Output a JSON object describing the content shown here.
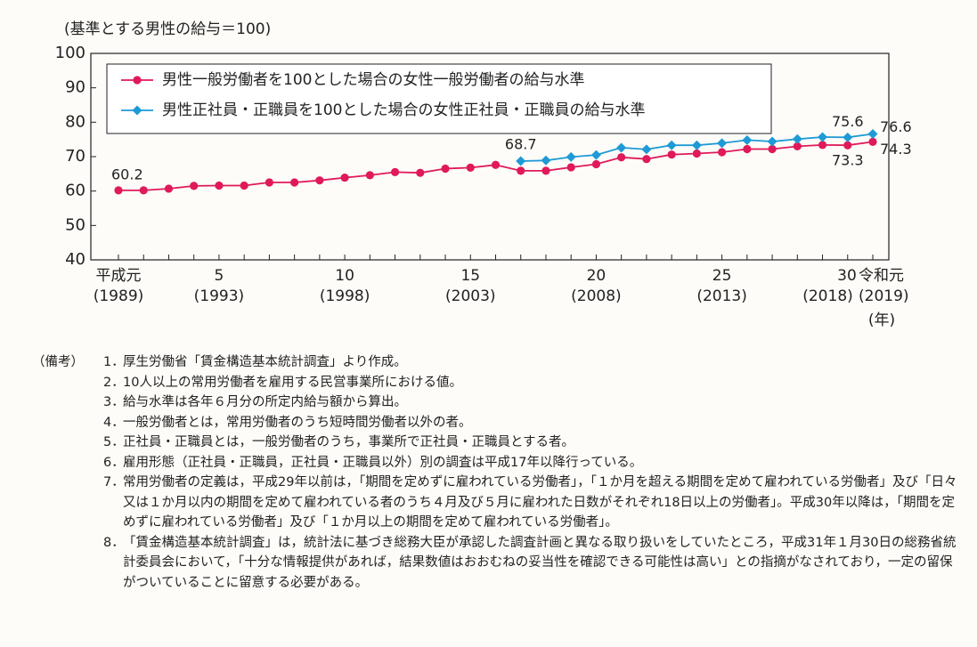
{
  "chart_data": {
    "type": "line",
    "y_axis_title": "(基準とする男性の給与＝100)",
    "categories": [
      "平成元",
      null,
      null,
      null,
      "5",
      null,
      null,
      null,
      null,
      "10",
      null,
      null,
      null,
      null,
      "15",
      null,
      null,
      null,
      null,
      "20",
      null,
      null,
      null,
      null,
      "25",
      null,
      null,
      null,
      null,
      "30",
      "令和元"
    ],
    "category_years": [
      "(1989)",
      null,
      null,
      null,
      "(1993)",
      null,
      null,
      null,
      null,
      "(1998)",
      null,
      null,
      null,
      null,
      "(2003)",
      null,
      null,
      null,
      null,
      "(2008)",
      null,
      null,
      null,
      null,
      "(2013)",
      null,
      null,
      null,
      null,
      "(2018)",
      "(2019)"
    ],
    "x_unit": "(年)",
    "series": [
      {
        "name": "男性一般労働者を100とした場合の女性一般労働者の給与水準",
        "color": "#e0195a",
        "marker": "circle",
        "values": [
          60.2,
          60.2,
          60.7,
          61.5,
          61.6,
          61.6,
          62.5,
          62.5,
          63.1,
          63.9,
          64.6,
          65.5,
          65.3,
          66.5,
          66.8,
          67.6,
          65.9,
          65.9,
          66.9,
          67.8,
          69.8,
          69.3,
          70.6,
          70.9,
          71.3,
          72.2,
          72.2,
          73.0,
          73.4,
          73.3,
          74.3
        ]
      },
      {
        "name": "男性正社員・正職員を100とした場合の女性正社員・正職員の給与水準",
        "color": "#1e9ad6",
        "marker": "diamond",
        "values": [
          null,
          null,
          null,
          null,
          null,
          null,
          null,
          null,
          null,
          null,
          null,
          null,
          null,
          null,
          null,
          null,
          68.7,
          68.9,
          69.9,
          70.5,
          72.6,
          72.1,
          73.3,
          73.3,
          73.9,
          74.8,
          74.4,
          75.1,
          75.7,
          75.6,
          76.6
        ]
      }
    ],
    "ylim": [
      40,
      100
    ],
    "yticks": [
      40,
      50,
      60,
      70,
      80,
      90,
      100
    ],
    "grid": false,
    "legend": "top-left"
  },
  "notes": {
    "label": "（備考）",
    "items": [
      {
        "number": "1．",
        "text": "厚生労働省「賃金構造基本統計調査」より作成。"
      },
      {
        "number": "2．",
        "text": "10人以上の常用労働者を雇用する民営事業所における値。"
      },
      {
        "number": "3．",
        "text": "給与水準は各年６月分の所定内給与額から算出。"
      },
      {
        "number": "4．",
        "text": "一般労働者とは，常用労働者のうち短時間労働者以外の者。"
      },
      {
        "number": "5．",
        "text": "正社員・正職員とは，一般労働者のうち，事業所で正社員・正職員とする者。"
      },
      {
        "number": "6．",
        "text": "雇用形態（正社員・正職員，正社員・正職員以外）別の調査は平成17年以降行っている。"
      },
      {
        "number": "7．",
        "text": "常用労働者の定義は，平成29年以前は，「期間を定めずに雇われている労働者」，「１か月を超える期間を定めて雇われている労働者」及び「日々又は１か月以内の期間を定めて雇われている者のうち４月及び５月に雇われた日数がそれぞれ18日以上の労働者」。平成30年以降は，「期間を定めずに雇われている労働者」及び「１か月以上の期間を定めて雇われている労働者」。"
      },
      {
        "number": "8．",
        "text": "「賃金構造基本統計調査」は，統計法に基づき総務大臣が承認した調査計画と異なる取り扱いをしていたところ，平成31年１月30日の総務省統計委員会において，「十分な情報提供があれば，結果数値はおおむねの妥当性を確認できる可能性は高い」との指摘がなされており，一定の留保がついていることに留意する必要がある。"
      }
    ]
  }
}
